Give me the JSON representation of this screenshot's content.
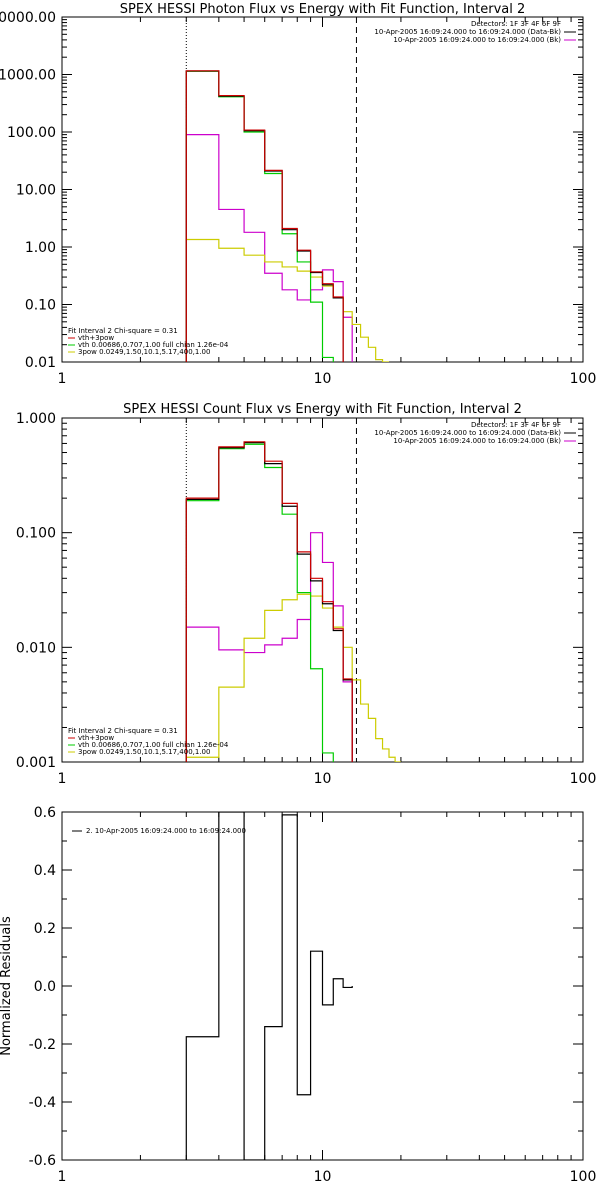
{
  "chart_data": [
    {
      "type": "line",
      "title": "SPEX HESSI Photon Flux vs Energy with Fit Function, Interval 2",
      "xlabel": "",
      "ylabel": "",
      "xscale": "log",
      "yscale": "log",
      "xlim": [
        1,
        100
      ],
      "ylim": [
        0.01,
        10000
      ],
      "x_ticks": [
        "1",
        "10",
        "100"
      ],
      "y_ticks": [
        "0.01",
        "0.10",
        "1.00",
        "10.00",
        "100.00",
        "1000.00",
        "10000.00"
      ],
      "y_tick_values": [
        0.01,
        0.1,
        1,
        10,
        100,
        1000,
        10000
      ],
      "fit_range": [
        3,
        13.5
      ],
      "bin_edges": [
        3,
        4,
        5,
        6,
        7,
        8,
        9,
        10,
        11,
        12,
        13,
        14,
        15,
        16,
        17,
        18
      ],
      "legend_top": [
        {
          "text": "Detectors: 1F 3F 4F 6F 9F",
          "color": ""
        },
        {
          "text": "10-Apr-2005 16:09:24.000 to 16:09:24.000 (Data-Bk)",
          "color": "#000000"
        },
        {
          "text": "10-Apr-2005 16:09:24.000 to 16:09:24.000 (Bk)",
          "color": "#cc00cc"
        }
      ],
      "legend_bottom": [
        {
          "text": "Fit Interval 2   Chi-square = 0.31",
          "color": ""
        },
        {
          "text": "vth+3pow",
          "color": "#cc0000"
        },
        {
          "text": "vth 0.00686,0.707,1.00   full chian 1.26e-04",
          "color": "#00cc00"
        },
        {
          "text": "3pow 0.0249,1.50,10.1,5.17,400,1.00",
          "color": "#cccc00"
        }
      ],
      "series": [
        {
          "name": "Data-Bk",
          "color": "#000000",
          "values": [
            1150,
            420,
            105,
            21,
            2.0,
            0.85,
            0.36,
            0.22,
            0.13,
            null,
            null,
            null,
            null,
            null,
            null
          ]
        },
        {
          "name": "vth+3pow",
          "color": "#cc0000",
          "values": [
            1160,
            430,
            108,
            21.5,
            2.1,
            0.88,
            0.37,
            0.23,
            0.135,
            null,
            null,
            null,
            null,
            null,
            null
          ]
        },
        {
          "name": "vth",
          "color": "#00cc00",
          "values": [
            1140,
            410,
            100,
            19,
            1.7,
            0.55,
            0.11,
            0.012,
            null,
            null,
            null,
            null,
            null,
            null,
            null
          ]
        },
        {
          "name": "3pow",
          "color": "#cccc00",
          "values": [
            1.35,
            0.95,
            0.72,
            0.55,
            0.45,
            0.38,
            0.3,
            0.21,
            0.13,
            0.075,
            0.045,
            0.027,
            0.018,
            0.011,
            0.006
          ]
        },
        {
          "name": "Bk",
          "color": "#cc00cc",
          "values": [
            90,
            4.5,
            1.8,
            0.35,
            0.18,
            0.12,
            0.18,
            0.4,
            0.25,
            0.06,
            null,
            null,
            null,
            null,
            null
          ]
        }
      ]
    },
    {
      "type": "line",
      "title": "SPEX HESSI Count Flux vs Energy with Fit Function, Interval 2",
      "xlabel": "",
      "ylabel": "",
      "xscale": "log",
      "yscale": "log",
      "xlim": [
        1,
        100
      ],
      "ylim": [
        0.001,
        1.0
      ],
      "x_ticks": [
        "1",
        "10",
        "100"
      ],
      "y_ticks": [
        "0.001",
        "0.010",
        "0.100",
        "1.000"
      ],
      "y_tick_values": [
        0.001,
        0.01,
        0.1,
        1.0
      ],
      "fit_range": [
        3,
        13.5
      ],
      "bin_edges": [
        3,
        4,
        5,
        6,
        7,
        8,
        9,
        10,
        11,
        12,
        13,
        14,
        15,
        16,
        17,
        18,
        19,
        20
      ],
      "legend_top": [
        {
          "text": "Detectors: 1F 3F 4F 6F 9F",
          "color": ""
        },
        {
          "text": "10-Apr-2005 16:09:24.000 to 16:09:24.000 (Data-Bk)",
          "color": "#000000"
        },
        {
          "text": "10-Apr-2005 16:09:24.000 to 16:09:24.000 (Bk)",
          "color": "#cc00cc"
        }
      ],
      "legend_bottom": [
        {
          "text": "Fit Interval 2   Chi-square = 0.31",
          "color": ""
        },
        {
          "text": "vth+3pow",
          "color": "#cc0000"
        },
        {
          "text": "vth 0.00686,0.707,1.00   full chian 1.26e-04",
          "color": "#00cc00"
        },
        {
          "text": "3pow 0.0249,1.50,10.1,5.17,400,1.00",
          "color": "#cccc00"
        }
      ],
      "series": [
        {
          "name": "Data-Bk",
          "color": "#000000",
          "values": [
            0.195,
            0.55,
            0.61,
            0.4,
            0.17,
            0.065,
            0.038,
            0.024,
            0.014,
            0.0052,
            null,
            null,
            null,
            null,
            null,
            null,
            null
          ]
        },
        {
          "name": "vth+3pow",
          "color": "#cc0000",
          "values": [
            0.2,
            0.56,
            0.62,
            0.42,
            0.18,
            0.068,
            0.04,
            0.025,
            0.0145,
            0.0053,
            null,
            null,
            null,
            null,
            null,
            null,
            null
          ]
        },
        {
          "name": "vth",
          "color": "#00cc00",
          "values": [
            0.19,
            0.54,
            0.59,
            0.37,
            0.145,
            0.03,
            0.0065,
            0.0012,
            null,
            null,
            null,
            null,
            null,
            null,
            null,
            null,
            null
          ]
        },
        {
          "name": "3pow",
          "color": "#cccc00",
          "values": [
            0.0011,
            0.0045,
            0.012,
            0.021,
            0.026,
            0.029,
            0.028,
            0.022,
            0.015,
            0.01,
            0.0052,
            0.0032,
            0.0024,
            0.0016,
            0.0013,
            0.0011,
            0.001
          ]
        },
        {
          "name": "Bk",
          "color": "#cc00cc",
          "values": [
            0.015,
            0.0095,
            0.009,
            0.0105,
            0.012,
            0.0175,
            0.1,
            0.055,
            0.023,
            0.005,
            null,
            null,
            null,
            null,
            null,
            null,
            null
          ]
        }
      ]
    },
    {
      "type": "line",
      "title": "",
      "xlabel": "",
      "ylabel": "Normalized Residuals",
      "xscale": "log",
      "yscale": "linear",
      "xlim": [
        1,
        100
      ],
      "ylim": [
        -0.6,
        0.6
      ],
      "x_ticks": [
        "1",
        "10",
        "100"
      ],
      "y_ticks": [
        "-0.6",
        "-0.4",
        "-0.2",
        "0.0",
        "0.2",
        "0.4",
        "0.6"
      ],
      "y_tick_values": [
        -0.6,
        -0.4,
        -0.2,
        0.0,
        0.2,
        0.4,
        0.6
      ],
      "legend_top": [
        {
          "text": "2. 10-Apr-2005 16:09:24.000 to 16:09:24.000",
          "color": "#000000"
        }
      ],
      "legend_bottom": [],
      "bin_edges": [
        3,
        4,
        5,
        6,
        7,
        8,
        9,
        10,
        11,
        12,
        13
      ],
      "series": [
        {
          "name": "residuals",
          "color": "#000000",
          "values": [
            -0.175,
            0.6,
            -0.61,
            -0.14,
            0.59,
            -0.375,
            0.12,
            -0.065,
            0.025,
            -0.005
          ]
        }
      ]
    }
  ]
}
